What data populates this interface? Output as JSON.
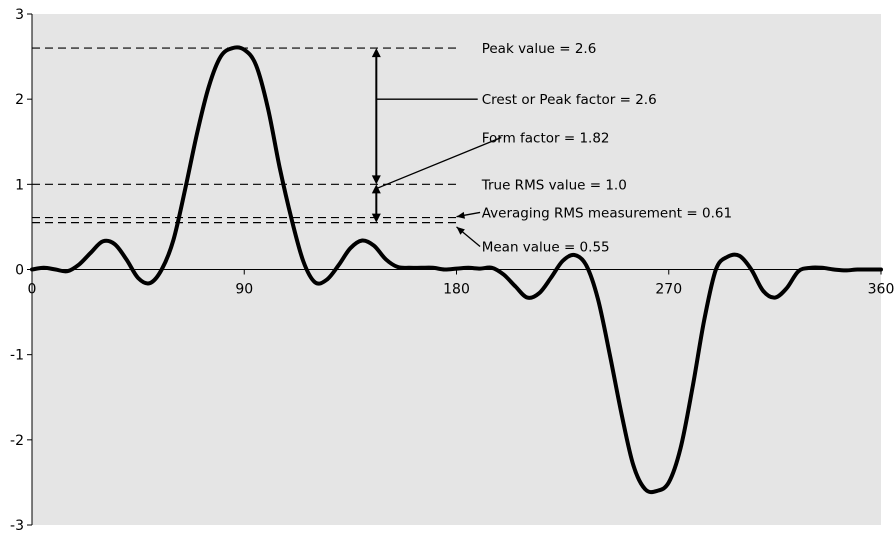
{
  "chart_data": {
    "type": "line",
    "title": "",
    "xlabel": "",
    "ylabel": "",
    "xlim": [
      0,
      360
    ],
    "ylim": [
      -3,
      3
    ],
    "grid": false,
    "background_color": "#e5e5e5",
    "line_color": "#000000",
    "x_ticks": [
      0,
      90,
      180,
      270,
      360
    ],
    "x_tick_labels": [
      "0",
      "90",
      "180",
      "270",
      "360"
    ],
    "y_ticks": [
      3,
      2,
      1,
      0,
      -1,
      -2,
      -3
    ],
    "y_tick_labels": [
      "3",
      "2",
      "1",
      "0",
      "-1",
      "-2",
      "-3"
    ],
    "series": [
      {
        "x": [
          0,
          5,
          10,
          15,
          20,
          25,
          30,
          35,
          40,
          45,
          50,
          55,
          60,
          65,
          70,
          75,
          80,
          85,
          90,
          95,
          100,
          105,
          110,
          115,
          120,
          125,
          130,
          135,
          140,
          145,
          150,
          155,
          160,
          165,
          170,
          175,
          180,
          185,
          190,
          195,
          200,
          205,
          210,
          215,
          220,
          225,
          230,
          235,
          240,
          245,
          250,
          255,
          260,
          265,
          270,
          275,
          280,
          285,
          290,
          295,
          300,
          305,
          310,
          315,
          320,
          325,
          330,
          335,
          340,
          345,
          350,
          355,
          360
        ],
        "values": [
          0.0,
          0.02,
          0.0,
          -0.02,
          0.06,
          0.2,
          0.33,
          0.3,
          0.12,
          -0.1,
          -0.16,
          0.0,
          0.35,
          0.95,
          1.6,
          2.15,
          2.5,
          2.6,
          2.58,
          2.4,
          1.9,
          1.2,
          0.6,
          0.1,
          -0.15,
          -0.12,
          0.05,
          0.25,
          0.34,
          0.28,
          0.12,
          0.03,
          0.02,
          0.02,
          0.02,
          0.0,
          0.01,
          0.02,
          0.01,
          0.02,
          -0.06,
          -0.2,
          -0.33,
          -0.28,
          -0.1,
          0.1,
          0.17,
          0.05,
          -0.35,
          -1.0,
          -1.7,
          -2.3,
          -2.58,
          -2.6,
          -2.5,
          -2.1,
          -1.4,
          -0.6,
          0.0,
          0.15,
          0.16,
          0.0,
          -0.25,
          -0.33,
          -0.22,
          -0.02,
          0.02,
          0.02,
          0.0,
          -0.01,
          0.0,
          0.0,
          0.0
        ]
      }
    ],
    "reference_lines": [
      {
        "y": 2.6,
        "x_range": [
          0,
          180
        ]
      },
      {
        "y": 1.0,
        "x_range": [
          0,
          180
        ]
      },
      {
        "y": 0.61,
        "x_range": [
          0,
          180
        ]
      },
      {
        "y": 0.55,
        "x_range": [
          0,
          180
        ]
      }
    ],
    "arrows": [
      {
        "x": 146,
        "y_from": 1.0,
        "y_to": 2.6,
        "both_ends": true
      },
      {
        "x": 146,
        "y_from": 0.55,
        "y_to": 1.0,
        "both_ends": true
      }
    ],
    "annotations": [
      {
        "text": "Peak value = 2.6",
        "x": 189,
        "y": 2.6
      },
      {
        "text": "Crest or Peak factor = 2.6",
        "x": 189,
        "y": 2.0,
        "pointer_from": [
          146,
          2.0
        ]
      },
      {
        "text": "Form factor = 1.82",
        "x": 189,
        "y": 1.55,
        "pointer_from": [
          146,
          0.95
        ],
        "pointer_to": [
          199,
          1.55
        ]
      },
      {
        "text": "True RMS value = 1.0",
        "x": 189,
        "y": 1.0
      },
      {
        "text": "Averaging RMS measurement = 0.61",
        "x": 189,
        "y": 0.67,
        "pointer_from": [
          190,
          0.67
        ],
        "pointer_to": [
          180,
          0.62
        ]
      },
      {
        "text": "Mean value = 0.55",
        "x": 189,
        "y": 0.27,
        "pointer_from": [
          190,
          0.27
        ],
        "pointer_to": [
          180,
          0.5
        ]
      }
    ]
  }
}
